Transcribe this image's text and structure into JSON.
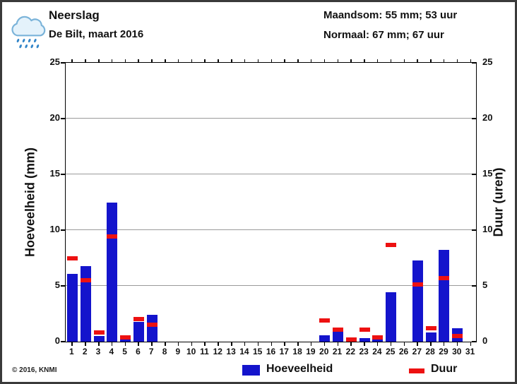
{
  "header": {
    "title": "Neerslag",
    "subtitle": "De Bilt, maart 2016",
    "summary_line1": "Maandsom: 55 mm; 53 uur",
    "summary_line2": "Normaal: 67 mm; 67 uur"
  },
  "footer": {
    "copyright": "© 2016, KNMI"
  },
  "colors": {
    "bar": "#1414cc",
    "dash": "#ed1111",
    "grid": "#9a9a9a",
    "axis": "#000000",
    "cloud_stroke": "#7ab3d9",
    "cloud_fill": "#e4f2fb",
    "drop": "#3386c9"
  },
  "chart_data": {
    "type": "bar",
    "title": "Neerslag, De Bilt, maart 2016",
    "categories": [
      1,
      2,
      3,
      4,
      5,
      6,
      7,
      8,
      9,
      10,
      11,
      12,
      13,
      14,
      15,
      16,
      17,
      18,
      19,
      20,
      21,
      22,
      23,
      24,
      25,
      26,
      27,
      28,
      29,
      30,
      31
    ],
    "xlabel": "",
    "ylabel_left": "Hoeveelheid (mm)",
    "ylabel_right": "Duur (uren)",
    "ylim": [
      0,
      25
    ],
    "yticks": [
      0,
      5,
      10,
      15,
      20,
      25
    ],
    "grid": true,
    "legend_position": "bottom",
    "series": [
      {
        "name": "Hoeveelheid",
        "unit": "mm",
        "axis": "left",
        "mark": "bar",
        "values": [
          6.1,
          6.8,
          0.5,
          12.5,
          0.2,
          1.8,
          2.4,
          0,
          0,
          0,
          0,
          0,
          0,
          0,
          0,
          0,
          0,
          0,
          0,
          0.6,
          1.2,
          0.1,
          0.3,
          0.2,
          4.4,
          0,
          7.3,
          0.8,
          8.2,
          1.2,
          0
        ]
      },
      {
        "name": "Duur",
        "unit": "uren",
        "axis": "right",
        "mark": "dash",
        "values": [
          7.5,
          5.5,
          0.8,
          9.4,
          0.4,
          2.0,
          1.5,
          null,
          null,
          null,
          null,
          null,
          null,
          null,
          null,
          null,
          null,
          null,
          null,
          1.9,
          1.1,
          0.2,
          1.1,
          0.4,
          8.7,
          null,
          5.1,
          1.2,
          5.7,
          0.5,
          null
        ]
      }
    ]
  }
}
